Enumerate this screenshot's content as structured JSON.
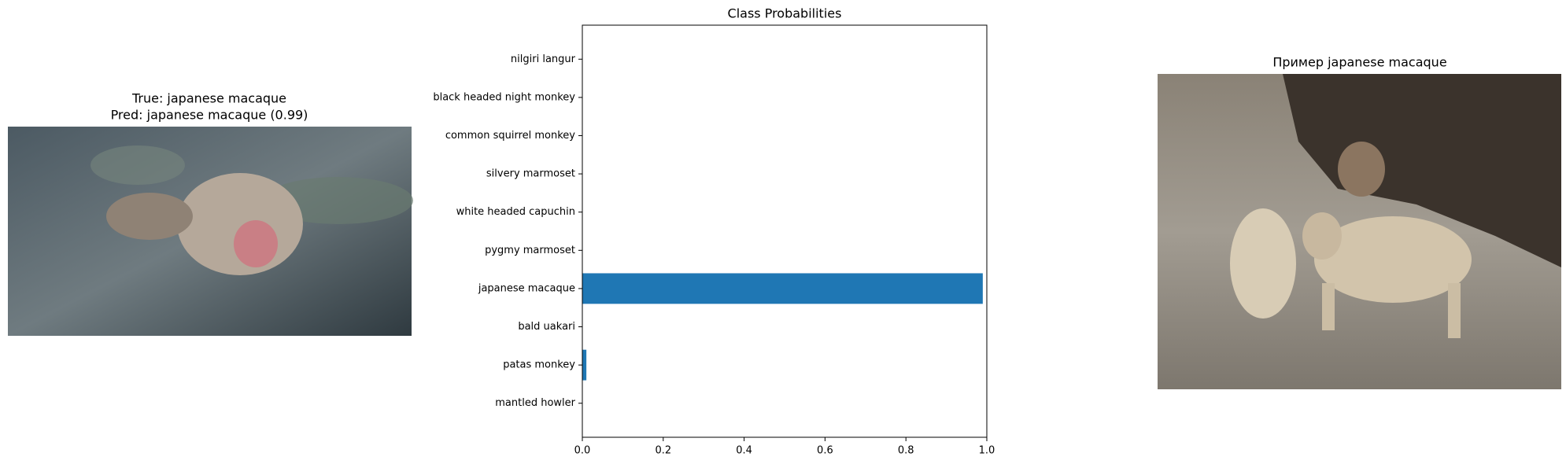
{
  "left_panel": {
    "title_lines": [
      "True: japanese macaque",
      "Pred: japanese macaque (0.99)"
    ]
  },
  "right_panel": {
    "title": "Пример japanese macaque"
  },
  "chart_data": {
    "type": "barh",
    "title": "Class Probabilities",
    "categories": [
      "mantled howler",
      "patas monkey",
      "bald uakari",
      "japanese macaque",
      "pygmy marmoset",
      "white headed capuchin",
      "silvery marmoset",
      "common squirrel monkey",
      "black headed night monkey",
      "nilgiri langur"
    ],
    "values": [
      0,
      0.01,
      0,
      0.99,
      0,
      0,
      0,
      0,
      0,
      0
    ],
    "color": "#1f77b4",
    "xlim": [
      0,
      1
    ],
    "xticks": [
      {
        "value": 0,
        "label": "0.0"
      },
      0.2,
      0.4,
      0.6,
      0.8,
      {
        "value": 1,
        "label": "1.0"
      }
    ],
    "ylim": [
      -0.89,
      9.89
    ]
  }
}
